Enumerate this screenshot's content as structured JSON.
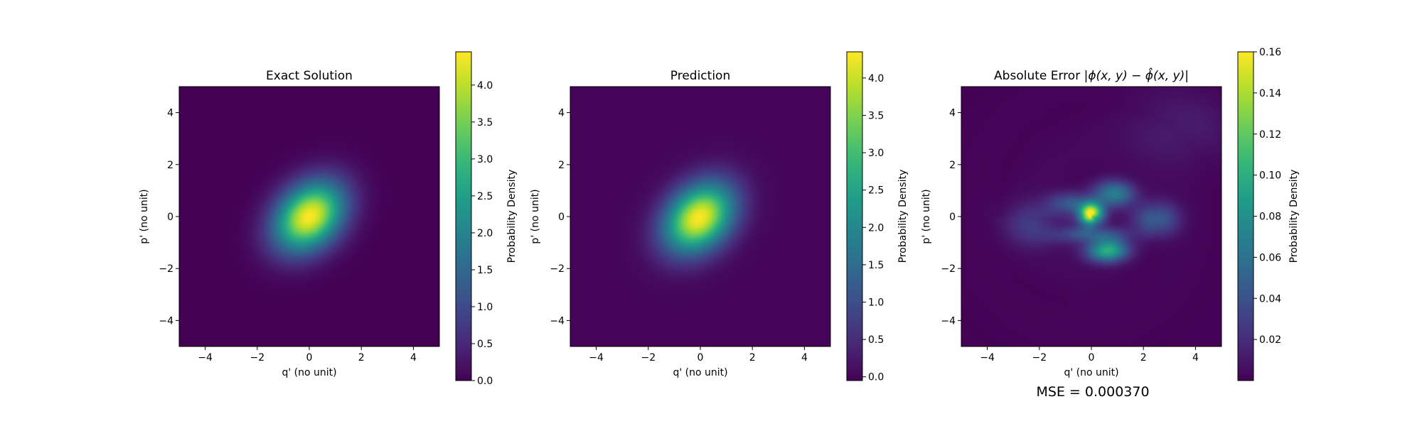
{
  "chart_data": [
    {
      "type": "heatmap",
      "title": "Exact Solution",
      "xlabel": "q' (no unit)",
      "ylabel": "p' (no unit)",
      "xlim": [
        -5,
        5
      ],
      "ylim": [
        -5,
        5
      ],
      "xticks": [
        "−4",
        "−2",
        "0",
        "2",
        "4"
      ],
      "yticks": [
        "−4",
        "−2",
        "0",
        "2",
        "4"
      ],
      "colormap": "viridis",
      "colorbar": {
        "label": "Probability Density",
        "range": [
          0.0,
          4.45
        ],
        "ticks": [
          0.0,
          0.5,
          1.0,
          1.5,
          2.0,
          2.5,
          3.0,
          3.5,
          4.0
        ],
        "tick_labels": [
          "0.0",
          "0.5",
          "1.0",
          "1.5",
          "2.0",
          "2.5",
          "3.0",
          "3.5",
          "4.0"
        ]
      },
      "field": {
        "kind": "gaussian",
        "amplitude": 4.45,
        "center": [
          0,
          0
        ],
        "sigma_major": 1.05,
        "sigma_minor": 0.78,
        "angle_deg": 45
      }
    },
    {
      "type": "heatmap",
      "title": "Prediction",
      "xlabel": "q' (no unit)",
      "ylabel": "p' (no unit)",
      "xlim": [
        -5,
        5
      ],
      "ylim": [
        -5,
        5
      ],
      "xticks": [
        "−4",
        "−2",
        "0",
        "2",
        "4"
      ],
      "yticks": [
        "−4",
        "−2",
        "0",
        "2",
        "4"
      ],
      "colormap": "viridis",
      "colorbar": {
        "label": "Probability Density",
        "range": [
          -0.05,
          4.35
        ],
        "ticks": [
          0.0,
          0.5,
          1.0,
          1.5,
          2.0,
          2.5,
          3.0,
          3.5,
          4.0
        ],
        "tick_labels": [
          "0.0",
          "0.5",
          "1.0",
          "1.5",
          "2.0",
          "2.5",
          "3.0",
          "3.5",
          "4.0"
        ]
      },
      "field": {
        "kind": "gaussian",
        "amplitude": 4.35,
        "center": [
          -0.05,
          -0.05
        ],
        "sigma_major": 1.05,
        "sigma_minor": 0.78,
        "angle_deg": 45
      }
    },
    {
      "type": "heatmap",
      "title": "Absolute Error",
      "title_formula": "|ϕ(x, y) − ϕ̂(x, y)|",
      "xlabel": "q' (no unit)",
      "ylabel": "p' (no unit)",
      "xlim": [
        -5,
        5
      ],
      "ylim": [
        -5,
        5
      ],
      "xticks": [
        "−4",
        "−2",
        "0",
        "2",
        "4"
      ],
      "yticks": [
        "−4",
        "−2",
        "0",
        "2",
        "4"
      ],
      "colormap": "viridis",
      "colorbar": {
        "label": "Probability Density",
        "range": [
          0.0,
          0.16
        ],
        "ticks": [
          0.02,
          0.04,
          0.06,
          0.08,
          0.1,
          0.12,
          0.14,
          0.16
        ],
        "tick_labels": [
          "0.02",
          "0.04",
          "0.06",
          "0.08",
          "0.10",
          "0.12",
          "0.14",
          "0.16"
        ]
      },
      "field": {
        "kind": "error_pattern",
        "peak": 0.16,
        "peak_location": [
          0,
          0.1
        ]
      },
      "annotation": "MSE = 0.000370"
    }
  ]
}
